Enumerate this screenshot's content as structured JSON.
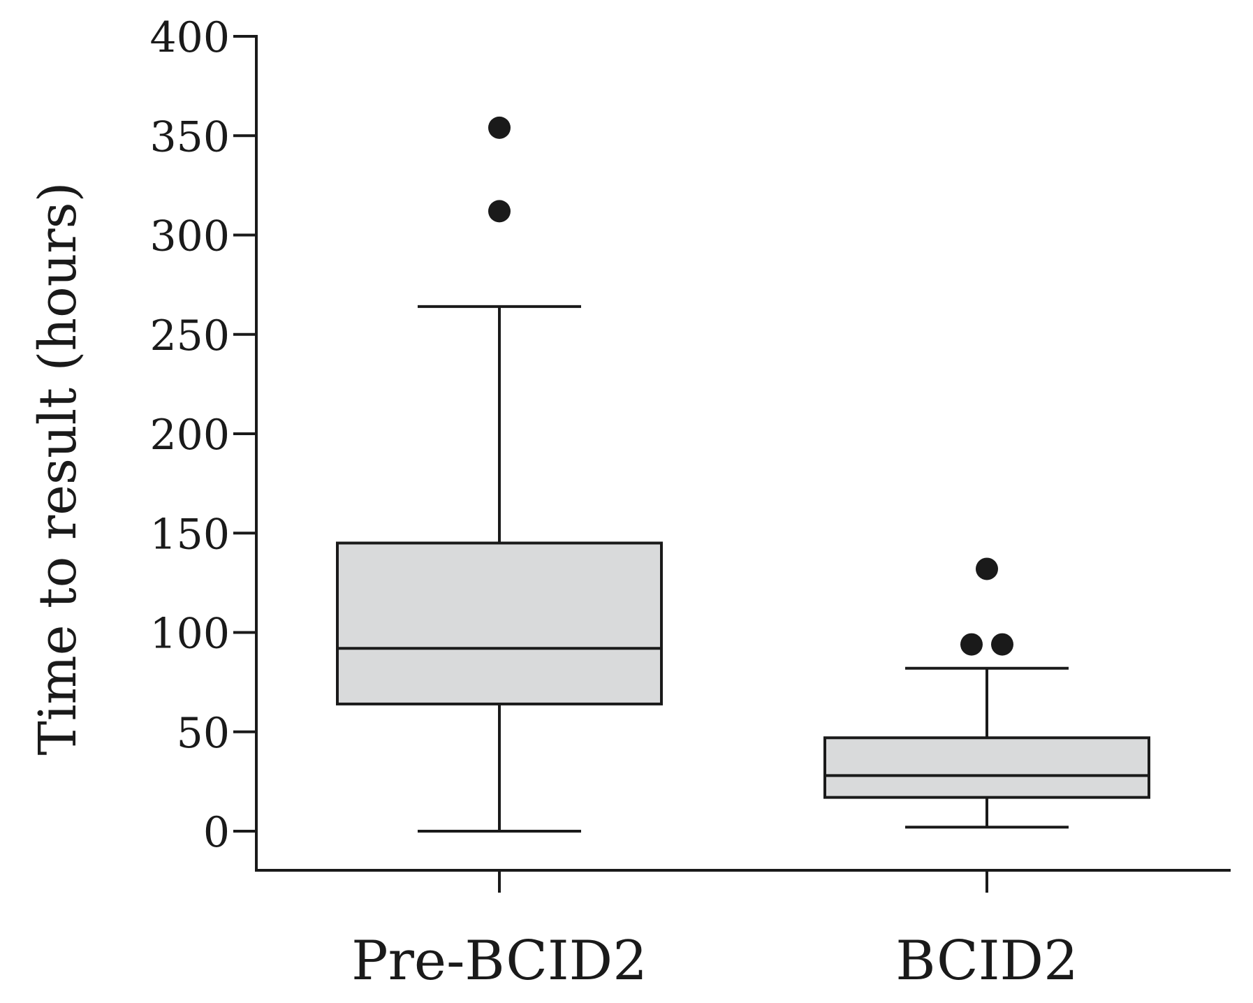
{
  "chart_data": {
    "type": "box",
    "title": "",
    "xlabel": "",
    "ylabel": "Time to result (hours)",
    "ylim": [
      -20,
      400
    ],
    "yticks": [
      0,
      50,
      100,
      150,
      200,
      250,
      300,
      350,
      400
    ],
    "ytick_labels": [
      "0",
      "50",
      "100",
      "150",
      "200",
      "250",
      "300",
      "350",
      "400"
    ],
    "categories": [
      "Pre-BCID2",
      "BCID2"
    ],
    "box_fill": "#d9dadb",
    "line_color": "#1a1a1a",
    "boxes": [
      {
        "category": "Pre-BCID2",
        "whisker_low": 0,
        "q1": 64,
        "median": 92,
        "q3": 145,
        "whisker_high": 264,
        "outliers": [
          312,
          354
        ]
      },
      {
        "category": "BCID2",
        "whisker_low": 2,
        "q1": 17,
        "median": 28,
        "q3": 47,
        "whisker_high": 82,
        "outliers": [
          94,
          94,
          132
        ]
      }
    ]
  }
}
